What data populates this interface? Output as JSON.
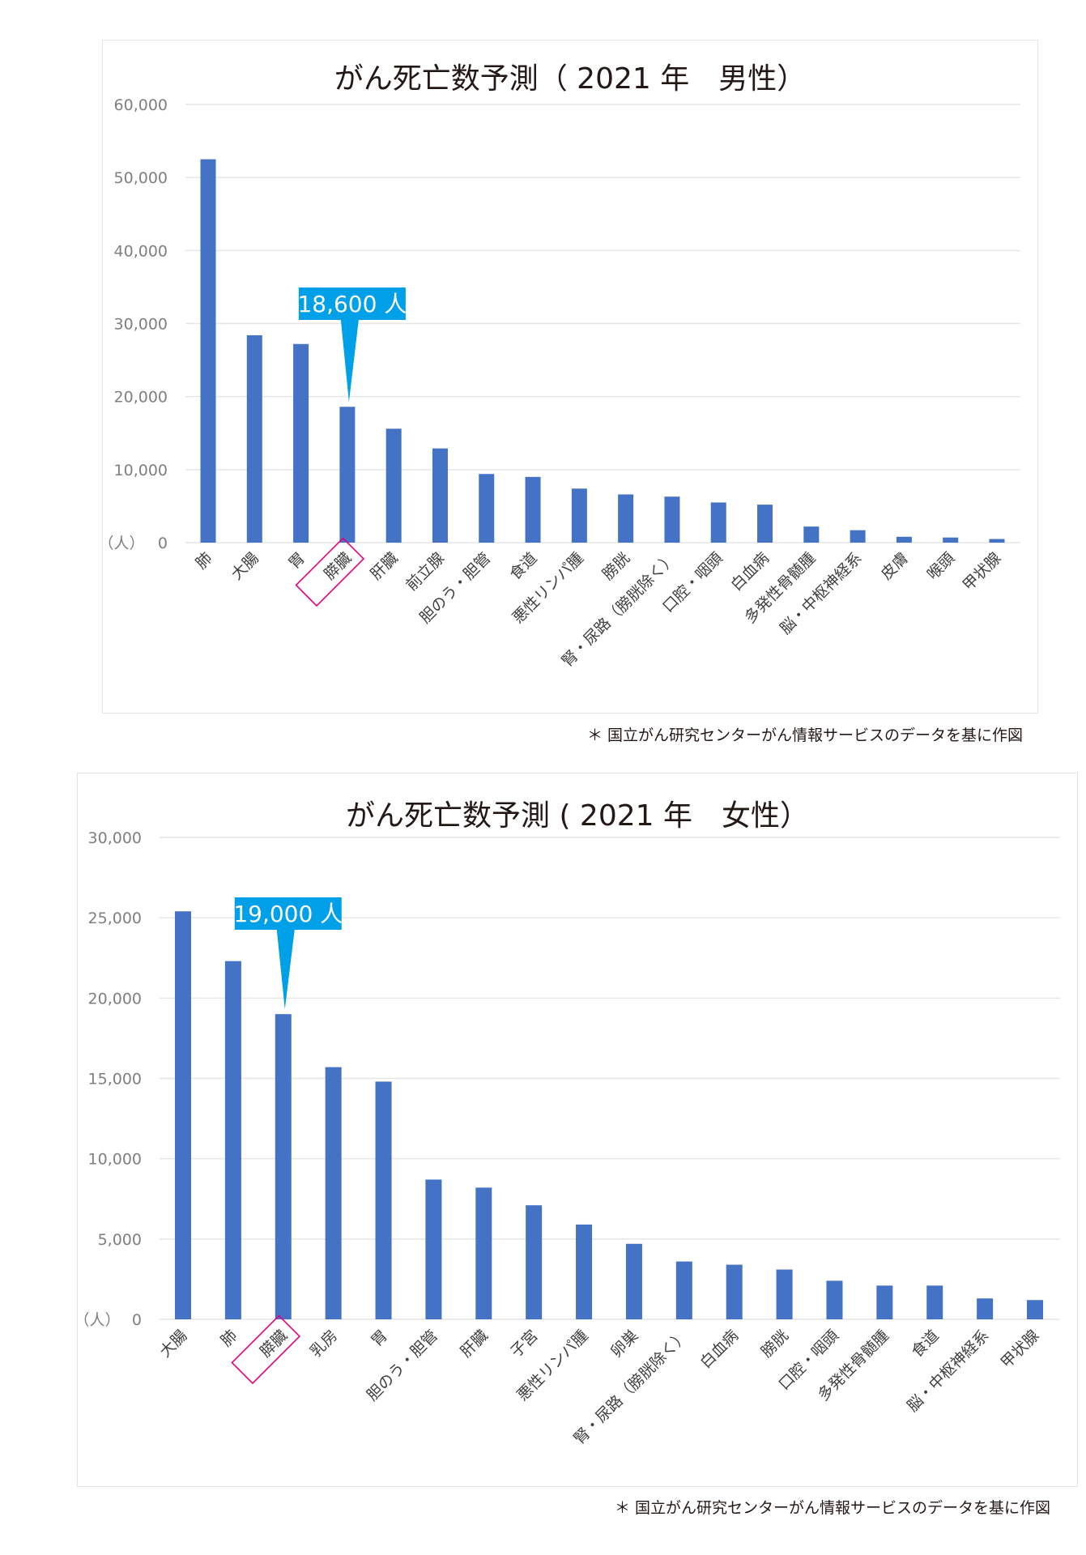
{
  "colors": {
    "bar": "#4472c4",
    "grid": "#e6e6e6",
    "callout": "#00a0e9",
    "highlight_box": "#e4007f"
  },
  "chart_data": [
    {
      "type": "bar",
      "title": "がん死亡数予測（ 2021 年　男性）",
      "ylabel": "（人）",
      "ylim": [
        0,
        60000
      ],
      "yticks": [
        0,
        10000,
        20000,
        30000,
        40000,
        50000,
        60000
      ],
      "ytick_labels": [
        "0",
        "10,000",
        "20,000",
        "30,000",
        "40,000",
        "50,000",
        "60,000"
      ],
      "grid": true,
      "categories": [
        "肺",
        "大腸",
        "胃",
        "膵臓",
        "肝臓",
        "前立腺",
        "胆のう・胆管",
        "食道",
        "悪性リンパ腫",
        "膀胱",
        "腎・尿路（膀胱除く）",
        "口腔・咽頭",
        "白血病",
        "多発性骨髄腫",
        "脳・中枢神経系",
        "皮膚",
        "喉頭",
        "甲状腺"
      ],
      "values": [
        52500,
        28400,
        27200,
        18600,
        15600,
        12900,
        9400,
        9000,
        7400,
        6600,
        6300,
        5500,
        5200,
        2200,
        1700,
        800,
        700,
        500
      ],
      "highlight_index": 3,
      "callout": "18,600 人",
      "footnote": "＊ 国立がん研究センターがん情報サービスのデータを基に作図"
    },
    {
      "type": "bar",
      "title": "がん死亡数予測 ( 2021 年　女性）",
      "ylabel": "（人）",
      "ylim": [
        0,
        30000
      ],
      "yticks": [
        0,
        5000,
        10000,
        15000,
        20000,
        25000,
        30000
      ],
      "ytick_labels": [
        "0",
        "5,000",
        "10,000",
        "15,000",
        "20,000",
        "25,000",
        "30,000"
      ],
      "grid": true,
      "categories": [
        "大腸",
        "肺",
        "膵臓",
        "乳房",
        "胃",
        "胆のう・胆管",
        "肝臓",
        "子宮",
        "悪性リンパ腫",
        "卵巣",
        "腎・尿路（膀胱除く）",
        "白血病",
        "膀胱",
        "口腔・咽頭",
        "多発性骨髄腫",
        "食道",
        "脳・中枢神経系",
        "甲状腺"
      ],
      "values": [
        25400,
        22300,
        19000,
        15700,
        14800,
        8700,
        8200,
        7100,
        5900,
        4700,
        3600,
        3400,
        3100,
        2400,
        2100,
        2100,
        1300,
        1200
      ],
      "highlight_index": 2,
      "callout": "19,000 人",
      "footnote": "＊ 国立がん研究センターがん情報サービスのデータを基に作図"
    }
  ]
}
